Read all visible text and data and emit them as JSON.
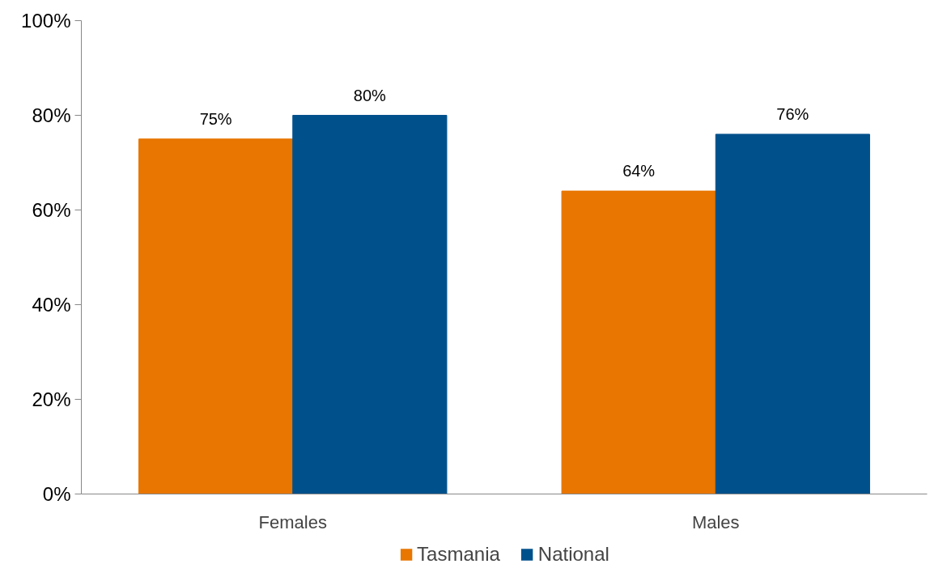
{
  "chart_data": {
    "type": "bar",
    "categories": [
      "Females",
      "Males"
    ],
    "series": [
      {
        "name": "Tasmania",
        "color": "#e87600",
        "values": [
          75,
          64
        ],
        "value_labels": [
          "75%",
          "64%"
        ]
      },
      {
        "name": "National",
        "color": "#00508c",
        "values": [
          80,
          76
        ],
        "value_labels": [
          "80%",
          "76%"
        ]
      }
    ],
    "ylim": [
      0,
      100
    ],
    "yticks": [
      {
        "value": 0,
        "label": "0%"
      },
      {
        "value": 20,
        "label": "20%"
      },
      {
        "value": 40,
        "label": "40%"
      },
      {
        "value": 60,
        "label": "60%"
      },
      {
        "value": 80,
        "label": "80%"
      },
      {
        "value": 100,
        "label": "100%"
      }
    ],
    "grid": false,
    "legend": "bottom"
  }
}
